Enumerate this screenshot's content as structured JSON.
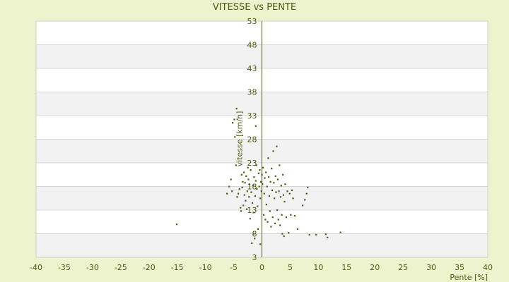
{
  "chart_data": {
    "type": "scatter",
    "title": "VITESSE vs PENTE",
    "xlabel": "Pente [%]",
    "ylabel": "vitesse [km/h]",
    "xlim": [
      -40,
      40
    ],
    "ylim": [
      3,
      53
    ],
    "x_ticks": [
      -40,
      -35,
      -30,
      -25,
      -20,
      -15,
      -10,
      -5,
      0,
      5,
      10,
      15,
      20,
      25,
      30,
      35,
      40
    ],
    "y_ticks": [
      3,
      8,
      13,
      18,
      23,
      28,
      33,
      38,
      43,
      48,
      53
    ],
    "grid": true,
    "legend": "none",
    "colors": {
      "background": "#ecf3cd",
      "plot_band_light": "#ffffff",
      "plot_band_dark": "#f2f2f2",
      "grid": "#d7d7d7",
      "axis": "#4f5a12",
      "text": "#4f5a12",
      "marker": "#4f5a12"
    },
    "series": [
      {
        "points": [
          [
            -15.1,
            10.0
          ],
          [
            -6.2,
            16.5
          ],
          [
            -5.8,
            18.0
          ],
          [
            -5.5,
            19.5
          ],
          [
            -5.3,
            17.0
          ],
          [
            -5.2,
            31.5
          ],
          [
            -4.9,
            32.2
          ],
          [
            -4.5,
            34.5
          ],
          [
            -4.8,
            28.5
          ],
          [
            -4.6,
            22.5
          ],
          [
            -4.4,
            15.8
          ],
          [
            -4.2,
            16.5
          ],
          [
            -4.0,
            17.5
          ],
          [
            -3.8,
            13.5
          ],
          [
            -3.7,
            12.8
          ],
          [
            -3.6,
            20.5
          ],
          [
            -3.5,
            17.8
          ],
          [
            -3.4,
            19.0
          ],
          [
            -3.3,
            14.0
          ],
          [
            -3.2,
            21.0
          ],
          [
            -3.1,
            16.2
          ],
          [
            -3.0,
            18.8
          ],
          [
            -2.9,
            15.0
          ],
          [
            -2.8,
            20.2
          ],
          [
            -2.7,
            13.2
          ],
          [
            -2.6,
            17.0
          ],
          [
            -2.5,
            22.0
          ],
          [
            -2.4,
            19.5
          ],
          [
            -2.3,
            15.8
          ],
          [
            -2.2,
            18.5
          ],
          [
            -2.1,
            11.2
          ],
          [
            -2.0,
            21.5
          ],
          [
            -1.9,
            16.8
          ],
          [
            -1.8,
            6.0
          ],
          [
            -1.7,
            14.5
          ],
          [
            -1.6,
            18.2
          ],
          [
            -1.5,
            12.5
          ],
          [
            -1.5,
            8.0
          ],
          [
            -1.4,
            20.0
          ],
          [
            -1.3,
            7.0
          ],
          [
            -1.2,
            16.0
          ],
          [
            -1.1,
            30.8
          ],
          [
            -1.1,
            19.2
          ],
          [
            -1.0,
            22.5
          ],
          [
            -0.9,
            17.5
          ],
          [
            -0.8,
            13.8
          ],
          [
            -0.7,
            9.0
          ],
          [
            -0.6,
            20.8
          ],
          [
            -0.5,
            18.0
          ],
          [
            -0.4,
            21.5
          ],
          [
            -0.3,
            5.8
          ],
          [
            -0.3,
            15.5
          ],
          [
            -0.2,
            19.0
          ],
          [
            -0.1,
            17.0
          ],
          [
            0.0,
            20.5
          ],
          [
            0.1,
            18.5
          ],
          [
            0.2,
            22.0
          ],
          [
            0.3,
            12.0
          ],
          [
            0.4,
            16.5
          ],
          [
            0.5,
            19.8
          ],
          [
            0.6,
            11.0
          ],
          [
            0.7,
            21.0
          ],
          [
            0.8,
            14.2
          ],
          [
            0.9,
            18.0
          ],
          [
            1.0,
            10.5
          ],
          [
            1.1,
            24.0
          ],
          [
            1.2,
            20.0
          ],
          [
            1.3,
            16.0
          ],
          [
            1.4,
            12.8
          ],
          [
            1.5,
            19.0
          ],
          [
            1.6,
            9.5
          ],
          [
            1.7,
            21.8
          ],
          [
            1.8,
            17.2
          ],
          [
            1.9,
            11.5
          ],
          [
            2.0,
            25.5
          ],
          [
            2.1,
            18.8
          ],
          [
            2.2,
            15.5
          ],
          [
            2.3,
            10.2
          ],
          [
            2.4,
            20.2
          ],
          [
            2.5,
            16.8
          ],
          [
            2.6,
            26.5
          ],
          [
            2.7,
            13.0
          ],
          [
            2.8,
            19.5
          ],
          [
            2.9,
            11.0
          ],
          [
            3.0,
            17.0
          ],
          [
            3.1,
            22.5
          ],
          [
            3.2,
            9.8
          ],
          [
            3.3,
            15.8
          ],
          [
            3.4,
            18.2
          ],
          [
            3.5,
            12.0
          ],
          [
            3.6,
            8.0
          ],
          [
            3.7,
            20.5
          ],
          [
            3.8,
            16.2
          ],
          [
            3.9,
            7.5
          ],
          [
            4.0,
            14.8
          ],
          [
            4.1,
            18.5
          ],
          [
            4.3,
            11.5
          ],
          [
            4.5,
            17.0
          ],
          [
            4.7,
            8.2
          ],
          [
            4.9,
            16.5
          ],
          [
            5.1,
            12.0
          ],
          [
            5.3,
            17.2
          ],
          [
            5.5,
            15.5
          ],
          [
            5.8,
            11.8
          ],
          [
            6.3,
            9.0
          ],
          [
            7.2,
            14.0
          ],
          [
            7.6,
            15.2
          ],
          [
            7.9,
            16.5
          ],
          [
            8.1,
            17.8
          ],
          [
            8.4,
            7.8
          ],
          [
            9.6,
            7.8
          ],
          [
            11.3,
            7.9
          ],
          [
            11.6,
            7.2
          ],
          [
            13.9,
            8.3
          ]
        ]
      }
    ]
  }
}
